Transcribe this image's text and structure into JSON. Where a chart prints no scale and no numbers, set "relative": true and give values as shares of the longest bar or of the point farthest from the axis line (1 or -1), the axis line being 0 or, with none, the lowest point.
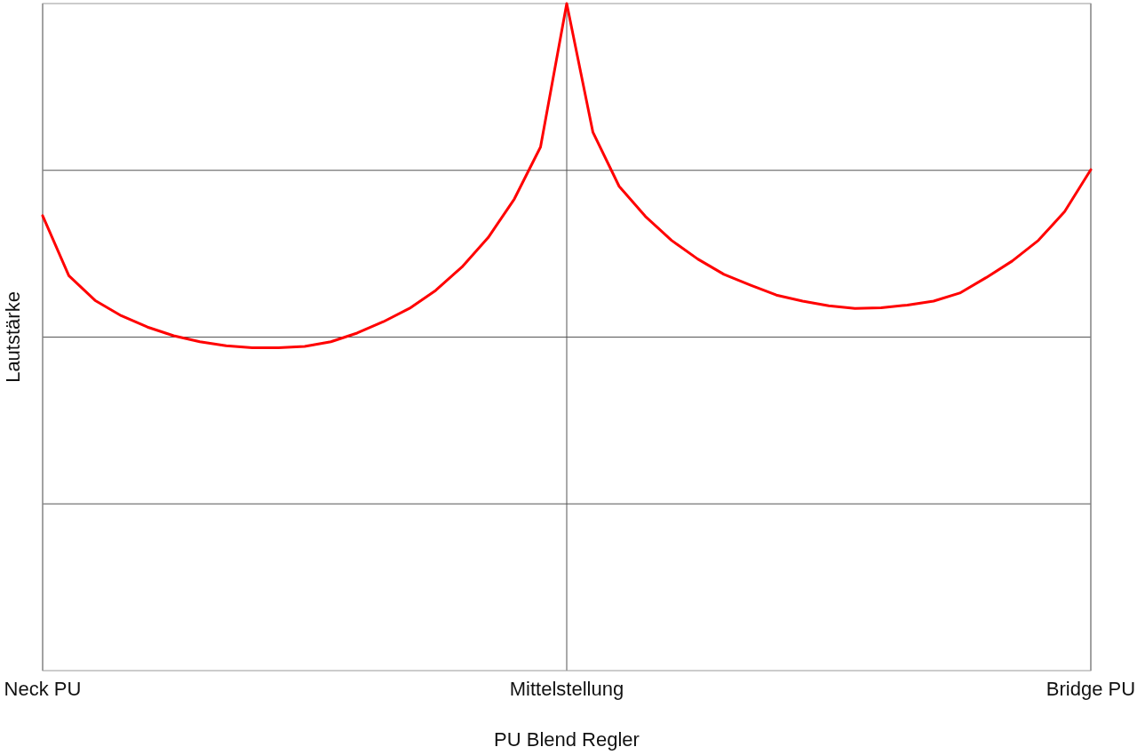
{
  "chart_data": {
    "type": "line",
    "relative": true,
    "xlabel": "PU Blend Regler",
    "ylabel": "Lautstärke",
    "grid": true,
    "marker": "none",
    "line_style": "solid",
    "categories": [
      "Neck PU",
      null,
      null,
      null,
      null,
      null,
      null,
      null,
      null,
      null,
      null,
      null,
      null,
      null,
      null,
      null,
      null,
      null,
      null,
      null,
      "Mittelstellung",
      null,
      null,
      null,
      null,
      null,
      null,
      null,
      null,
      null,
      null,
      null,
      null,
      null,
      null,
      null,
      null,
      null,
      null,
      null,
      "Bridge PU"
    ],
    "series": [
      {
        "color": "#ff0000",
        "values": [
          0.682,
          0.592,
          0.555,
          0.532,
          0.515,
          0.502,
          0.493,
          0.487,
          0.484,
          0.484,
          0.486,
          0.493,
          0.506,
          0.523,
          0.543,
          0.57,
          0.605,
          0.649,
          0.707,
          0.785,
          1,
          0.807,
          0.726,
          0.681,
          0.645,
          0.617,
          0.594,
          0.578,
          0.563,
          0.554,
          0.547,
          0.543,
          0.544,
          0.548,
          0.554,
          0.566,
          0.589,
          0.614,
          0.645,
          0.688,
          0.751
        ]
      }
    ]
  }
}
